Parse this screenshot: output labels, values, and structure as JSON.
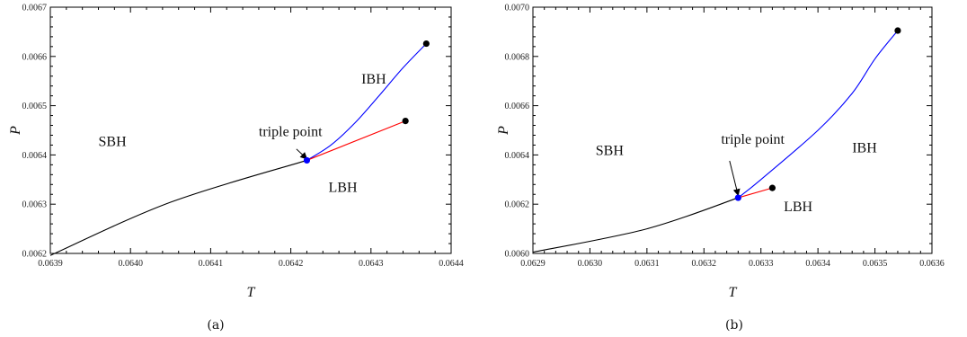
{
  "chart_data": [
    {
      "type": "line",
      "caption": "(a)",
      "xlabel": "T",
      "ylabel": "P",
      "xlim": [
        0.0639,
        0.0644
      ],
      "ylim": [
        0.0062,
        0.0067
      ],
      "xticks": [
        "0.0639",
        "0.0640",
        "0.0641",
        "0.0642",
        "0.0643",
        "0.0644"
      ],
      "yticks": [
        "0.0062",
        "0.0063",
        "0.0064",
        "0.0065",
        "0.0066",
        "0.0067"
      ],
      "grid": false,
      "series": [
        {
          "color": "#000000",
          "points": [
            [
              0.0639,
              0.006196
            ],
            [
              0.06405,
              0.006304
            ],
            [
              0.06422,
              0.006389
            ]
          ]
        },
        {
          "color": "#0000ff",
          "points": [
            [
              0.06422,
              0.006389
            ],
            [
              0.06425,
              0.00642
            ],
            [
              0.06428,
              0.006465
            ],
            [
              0.06431,
              0.00652
            ],
            [
              0.06434,
              0.006577
            ],
            [
              0.064369,
              0.006626
            ]
          ]
        },
        {
          "color": "#ff0000",
          "points": [
            [
              0.06422,
              0.006389
            ],
            [
              0.064343,
              0.006469
            ]
          ]
        }
      ],
      "markers": [
        {
          "color": "#000000",
          "x": 0.064369,
          "y": 0.006626
        },
        {
          "color": "#000000",
          "x": 0.064343,
          "y": 0.006469
        },
        {
          "color": "#0000ff",
          "x": 0.06422,
          "y": 0.006389
        }
      ],
      "annotations": [
        {
          "text": "SBH",
          "x": 0.06396,
          "y": 0.006418
        },
        {
          "text": "LBH",
          "x": 0.064247,
          "y": 0.006325
        },
        {
          "text": "IBH",
          "x": 0.064288,
          "y": 0.006545
        },
        {
          "text": "triple point",
          "x": 0.06416,
          "y": 0.006438
        }
      ],
      "arrow": {
        "from": [
          0.064207,
          0.006412
        ],
        "to": [
          0.06422,
          0.006392
        ]
      }
    },
    {
      "type": "line",
      "caption": "(b)",
      "xlabel": "T",
      "ylabel": "P",
      "xlim": [
        0.0629,
        0.0636
      ],
      "ylim": [
        0.006,
        0.007
      ],
      "xticks": [
        "0.0629",
        "0.0630",
        "0.0631",
        "0.0632",
        "0.0633",
        "0.0634",
        "0.0635",
        "0.0636"
      ],
      "yticks": [
        "0.0060",
        "0.0062",
        "0.0064",
        "0.0066",
        "0.0068",
        "0.0070"
      ],
      "grid": false,
      "series": [
        {
          "color": "#000000",
          "points": [
            [
              0.0629,
              0.006005
            ],
            [
              0.0631,
              0.0061
            ],
            [
              0.06326,
              0.006226
            ]
          ]
        },
        {
          "color": "#0000ff",
          "points": [
            [
              0.06326,
              0.006226
            ],
            [
              0.0633,
              0.0063
            ],
            [
              0.0634,
              0.0065
            ],
            [
              0.06346,
              0.00665
            ],
            [
              0.0635,
              0.00679
            ],
            [
              0.06354,
              0.006905
            ]
          ]
        },
        {
          "color": "#ff0000",
          "points": [
            [
              0.06326,
              0.006226
            ],
            [
              0.06332,
              0.006266
            ]
          ]
        }
      ],
      "markers": [
        {
          "color": "#000000",
          "x": 0.06354,
          "y": 0.006905
        },
        {
          "color": "#000000",
          "x": 0.06332,
          "y": 0.006266
        },
        {
          "color": "#0000ff",
          "x": 0.06326,
          "y": 0.006226
        }
      ],
      "annotations": [
        {
          "text": "SBH",
          "x": 0.06301,
          "y": 0.0064
        },
        {
          "text": "LBH",
          "x": 0.06334,
          "y": 0.006172
        },
        {
          "text": "IBH",
          "x": 0.06346,
          "y": 0.00641
        },
        {
          "text": "triple point",
          "x": 0.06323,
          "y": 0.006445
        }
      ],
      "arrow": {
        "from": [
          0.063245,
          0.006376
        ],
        "to": [
          0.06326,
          0.006236
        ]
      }
    }
  ]
}
